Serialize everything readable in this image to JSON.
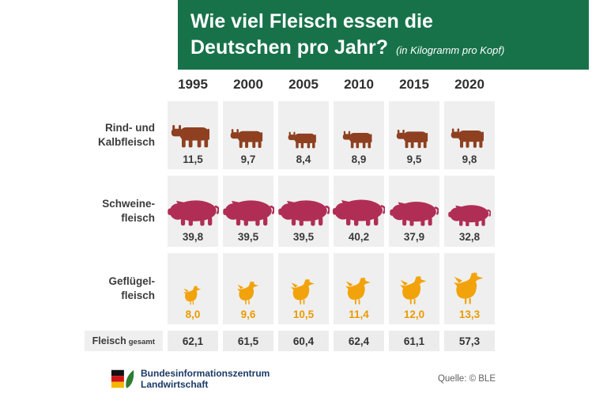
{
  "header": {
    "title_line1": "Wie viel Fleisch essen die",
    "title_line2": "Deutschen pro Jahr?",
    "subtitle": "(in Kilogramm pro Kopf)"
  },
  "colors": {
    "header_green": "#17724a",
    "cell_bg": "#efefef",
    "total_cell_bg": "#ececec",
    "cow_brown": "#8e4021",
    "pig_red": "#b02e55",
    "chicken_orange": "#f2a30b",
    "text_dark": "#3b3b3b"
  },
  "chart_data": {
    "type": "table",
    "title": "Wie viel Fleisch essen die Deutschen pro Jahr?",
    "subtitle": "(in Kilogramm pro Kopf)",
    "categories": [
      "1995",
      "2000",
      "2005",
      "2010",
      "2015",
      "2020"
    ],
    "series": [
      {
        "name": "Rind- und Kalbfleisch",
        "label_lines": [
          "Rind- und",
          "Kalbfleisch"
        ],
        "icon": "cow-icon",
        "color": "#8e4021",
        "value_color": "#3a3a3a",
        "values": [
          11.5,
          9.7,
          8.4,
          8.9,
          9.5,
          9.8
        ],
        "value_labels": [
          "11,5",
          "9,7",
          "8,4",
          "8,9",
          "9,5",
          "9,8"
        ]
      },
      {
        "name": "Schweinefleisch",
        "label_lines": [
          "Schweine-",
          "fleisch"
        ],
        "icon": "pig-icon",
        "color": "#b02e55",
        "value_color": "#3a3a3a",
        "values": [
          39.8,
          39.5,
          39.5,
          40.2,
          37.9,
          32.8
        ],
        "value_labels": [
          "39,8",
          "39,5",
          "39,5",
          "40,2",
          "37,9",
          "32,8"
        ]
      },
      {
        "name": "Geflügelfleisch",
        "label_lines": [
          "Geflügel-",
          "fleisch"
        ],
        "icon": "chicken-icon",
        "color": "#f2a30b",
        "value_color": "#ea9b00",
        "values": [
          8.0,
          9.6,
          10.5,
          11.4,
          12.0,
          13.3
        ],
        "value_labels": [
          "8,0",
          "9,6",
          "10,5",
          "11,4",
          "12,0",
          "13,3"
        ]
      }
    ],
    "total": {
      "label_main": "Fleisch",
      "label_sub": "gesamt",
      "values": [
        62.1,
        61.5,
        60.4,
        62.4,
        61.1,
        57.3
      ],
      "value_labels": [
        "62,1",
        "61,5",
        "60,4",
        "62,4",
        "61,1",
        "57,3"
      ]
    }
  },
  "footer": {
    "org_line1": "Bundesinformationszentrum",
    "org_line2": "Landwirtschaft",
    "source": "Quelle: © BLE"
  }
}
